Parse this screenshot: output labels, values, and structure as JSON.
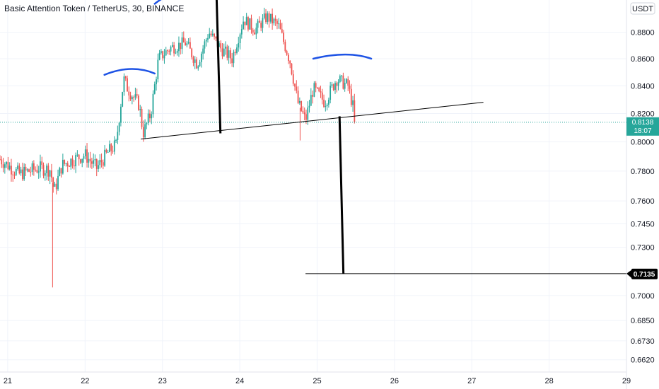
{
  "header": {
    "title": "Basic Attention Token / TetherUS, 30, BINANCE"
  },
  "price_axis": {
    "currency": "USDT",
    "ticks": [
      "0.8800",
      "0.8600",
      "0.8400",
      "0.8200",
      "0.8000",
      "0.7800",
      "0.7600",
      "0.7450",
      "0.7300",
      "0.7000",
      "0.6850",
      "0.6730",
      "0.6620"
    ]
  },
  "current_price": {
    "value": "0.8138",
    "countdown": "18:07",
    "color": "#26a69a"
  },
  "target": {
    "value": "0.7135"
  },
  "time_axis": {
    "ticks": [
      "21",
      "22",
      "23",
      "24",
      "25",
      "26",
      "27",
      "28",
      "29"
    ]
  },
  "colors": {
    "up": "#26a69a",
    "down": "#ef5350",
    "drawing_blue": "#1e53e5",
    "drawing_black": "#000000"
  },
  "chart_data": {
    "type": "candlestick",
    "title": "Basic Attention Token / TetherUS, 30, BINANCE",
    "interval": "30",
    "exchange": "BINANCE",
    "xlabel": "",
    "ylabel": "",
    "x_range": [
      "20.9",
      "29.0"
    ],
    "y_scale": "log",
    "ylim": [
      0.655,
      0.905
    ],
    "y_ticks": [
      0.88,
      0.86,
      0.84,
      0.82,
      0.8,
      0.78,
      0.76,
      0.745,
      0.73,
      0.7,
      0.685,
      0.673,
      0.662
    ],
    "x_ticks": [
      "21",
      "22",
      "23",
      "24",
      "25",
      "26",
      "27",
      "28",
      "29"
    ],
    "close_path": [
      [
        20.9,
        0.788
      ],
      [
        21.15,
        0.778
      ],
      [
        21.4,
        0.782
      ],
      [
        21.55,
        0.781
      ],
      [
        21.6,
        0.766
      ],
      [
        21.7,
        0.784
      ],
      [
        21.85,
        0.788
      ],
      [
        22.0,
        0.791
      ],
      [
        22.15,
        0.782
      ],
      [
        22.3,
        0.793
      ],
      [
        22.4,
        0.798
      ],
      [
        22.5,
        0.845
      ],
      [
        22.55,
        0.838
      ],
      [
        22.7,
        0.826
      ],
      [
        22.75,
        0.806
      ],
      [
        22.85,
        0.82
      ],
      [
        22.95,
        0.86
      ],
      [
        23.1,
        0.868
      ],
      [
        23.3,
        0.872
      ],
      [
        23.45,
        0.856
      ],
      [
        23.6,
        0.88
      ],
      [
        23.75,
        0.868
      ],
      [
        23.9,
        0.86
      ],
      [
        24.05,
        0.89
      ],
      [
        24.2,
        0.882
      ],
      [
        24.35,
        0.892
      ],
      [
        24.5,
        0.885
      ],
      [
        24.65,
        0.858
      ],
      [
        24.75,
        0.828
      ],
      [
        24.85,
        0.815
      ],
      [
        24.95,
        0.838
      ],
      [
        25.1,
        0.828
      ],
      [
        25.25,
        0.845
      ],
      [
        25.4,
        0.84
      ],
      [
        25.48,
        0.821
      ],
      [
        25.5,
        0.8138
      ]
    ],
    "outlier_wicks": [
      {
        "x": 21.58,
        "low": 0.705
      },
      {
        "x": 24.78,
        "low": 0.801
      }
    ],
    "current_price": 0.8138,
    "annotations": {
      "neckline": {
        "from": [
          22.72,
          0.802
        ],
        "to": [
          27.15,
          0.828
        ]
      },
      "shoulder_arcs": [
        {
          "from": [
            22.25,
            0.848
          ],
          "peak": [
            22.6,
            0.853
          ],
          "to": [
            22.9,
            0.849
          ]
        },
        {
          "from": [
            22.9,
            0.902
          ],
          "peak": [
            23.05,
            0.906
          ],
          "to": [
            23.1,
            0.906
          ]
        },
        {
          "from": [
            24.95,
            0.86
          ],
          "peak": [
            25.4,
            0.863
          ],
          "to": [
            25.7,
            0.86
          ]
        }
      ],
      "vertical_projections": [
        {
          "from": [
            23.7,
            0.908
          ],
          "to": [
            23.75,
            0.806
          ]
        },
        {
          "from": [
            25.29,
            0.818
          ],
          "to": [
            25.34,
            0.7135
          ]
        }
      ],
      "target_line": {
        "y": 0.7135,
        "x_start": 24.85,
        "x_end": 29.0
      }
    }
  }
}
